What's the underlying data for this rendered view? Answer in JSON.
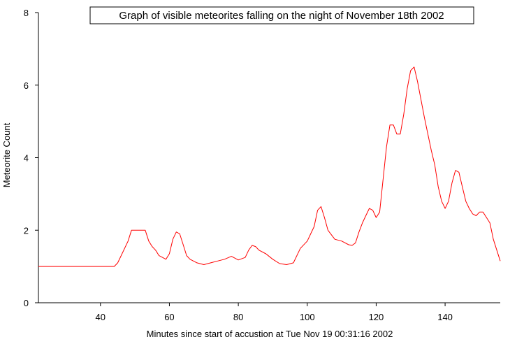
{
  "chart_data": {
    "type": "line",
    "title": "Graph of visible meteorites falling on the night of November 18th 2002",
    "xlabel": "Minutes since start of accustion at Tue Nov 19 00:31:16 2002",
    "ylabel": "Meteorite Count",
    "xlim": [
      22,
      156
    ],
    "ylim": [
      0,
      8
    ],
    "x_ticks": [
      40,
      60,
      80,
      100,
      120,
      140
    ],
    "y_ticks": [
      0,
      2,
      4,
      6,
      8
    ],
    "grid": false,
    "line_color": "#ff0000",
    "series": [
      {
        "x": [
          22,
          44,
          45,
          46,
          48,
          49,
          50,
          51,
          52,
          53,
          54,
          55,
          56,
          57,
          58,
          59,
          60,
          61,
          62,
          63,
          64,
          65,
          66,
          68,
          70,
          72,
          74,
          76,
          78,
          80,
          82,
          83,
          84,
          85,
          86,
          88,
          90,
          92,
          94,
          96,
          98,
          100,
          101,
          102,
          103,
          104,
          105,
          106,
          108,
          110,
          112,
          113,
          114,
          115,
          116,
          117,
          118,
          119,
          120,
          121,
          122,
          123,
          124,
          125,
          126,
          127,
          128,
          129,
          130,
          131,
          132,
          134,
          136,
          137,
          138,
          139,
          140,
          141,
          142,
          143,
          144,
          145,
          146,
          147,
          148,
          149,
          150,
          151,
          152,
          153,
          154,
          156
        ],
        "y": [
          1.0,
          1.0,
          1.1,
          1.3,
          1.7,
          2.0,
          2.0,
          2.0,
          2.0,
          2.0,
          1.7,
          1.55,
          1.45,
          1.3,
          1.25,
          1.2,
          1.35,
          1.75,
          1.95,
          1.9,
          1.6,
          1.3,
          1.2,
          1.1,
          1.05,
          1.1,
          1.15,
          1.2,
          1.28,
          1.18,
          1.25,
          1.45,
          1.58,
          1.55,
          1.45,
          1.35,
          1.2,
          1.08,
          1.05,
          1.1,
          1.5,
          1.7,
          1.9,
          2.1,
          2.55,
          2.65,
          2.35,
          2.0,
          1.75,
          1.7,
          1.6,
          1.58,
          1.65,
          1.95,
          2.2,
          2.4,
          2.6,
          2.55,
          2.35,
          2.5,
          3.4,
          4.3,
          4.9,
          4.9,
          4.65,
          4.65,
          5.2,
          5.9,
          6.4,
          6.5,
          6.1,
          5.1,
          4.2,
          3.8,
          3.2,
          2.8,
          2.6,
          2.8,
          3.3,
          3.65,
          3.6,
          3.2,
          2.8,
          2.6,
          2.45,
          2.4,
          2.5,
          2.5,
          2.35,
          2.2,
          1.75,
          1.15
        ]
      }
    ]
  }
}
